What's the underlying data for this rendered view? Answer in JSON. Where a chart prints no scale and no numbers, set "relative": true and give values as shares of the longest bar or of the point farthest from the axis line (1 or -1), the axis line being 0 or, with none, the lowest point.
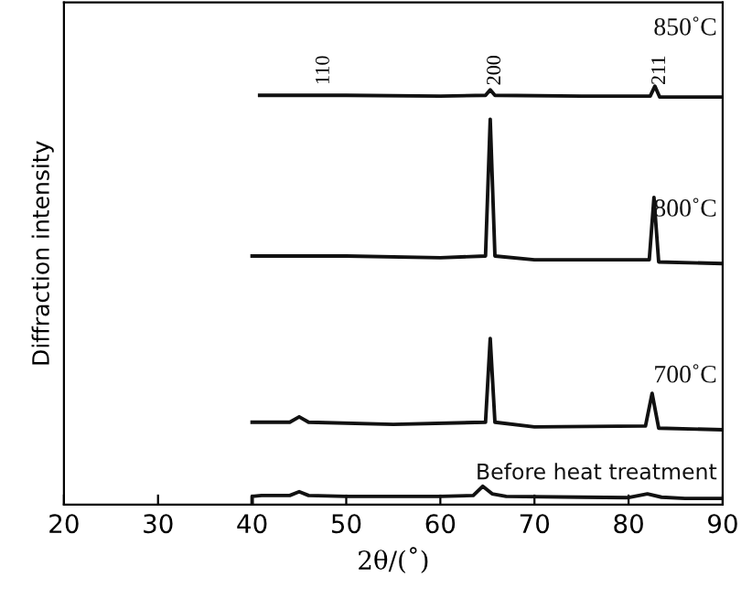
{
  "chart_data": {
    "type": "line",
    "relative": true,
    "xlabel": "2θ/(˚)",
    "ylabel": "Diffraction intensity",
    "xlim": [
      20,
      90
    ],
    "xticks": [
      20,
      30,
      40,
      50,
      60,
      70,
      80,
      90
    ],
    "grid": false,
    "legend": false,
    "marker": "none",
    "line_style": "solid",
    "series": [
      {
        "name": "850˚C",
        "color": "#111111",
        "x": [
          40.8,
          50,
          60,
          64.8,
          65.3,
          65.8,
          75,
          82.3,
          82.8,
          83.3,
          90
        ],
        "values": [
          0.978,
          0.978,
          0.976,
          0.978,
          0.991,
          0.978,
          0.976,
          0.976,
          1,
          0.974,
          0.974
        ]
      },
      {
        "name": "800˚C",
        "color": "#111111",
        "x": [
          40,
          50,
          60,
          64.8,
          65.3,
          65.8,
          70,
          82.2,
          82.7,
          83.2,
          90
        ],
        "values": [
          0.594,
          0.594,
          0.59,
          0.594,
          0.921,
          0.594,
          0.585,
          0.585,
          0.734,
          0.58,
          0.576
        ]
      },
      {
        "name": "700˚C",
        "color": "#111111",
        "x": [
          40,
          44,
          45,
          46,
          55,
          64.8,
          65.3,
          65.8,
          70,
          81.8,
          82.5,
          83.2,
          90
        ],
        "values": [
          0.197,
          0.197,
          0.21,
          0.197,
          0.192,
          0.197,
          0.397,
          0.197,
          0.186,
          0.188,
          0.266,
          0.183,
          0.179
        ]
      },
      {
        "name": "Before heat treatment",
        "color": "#111111",
        "x": [
          40,
          40,
          41,
          44,
          45,
          46,
          50,
          55,
          60,
          63.5,
          64.5,
          65.5,
          67,
          75,
          80,
          82,
          83.5,
          86,
          90
        ],
        "values": [
          0,
          0.02,
          0.022,
          0.022,
          0.031,
          0.022,
          0.02,
          0.02,
          0.02,
          0.022,
          0.044,
          0.026,
          0.02,
          0.018,
          0.017,
          0.026,
          0.018,
          0.015,
          0.015
        ]
      }
    ],
    "annotations": [
      "110",
      "200",
      "211"
    ]
  }
}
